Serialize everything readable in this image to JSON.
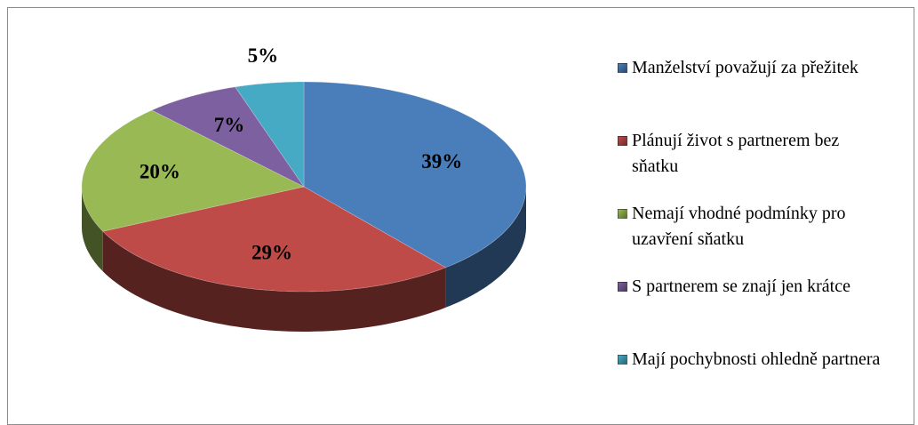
{
  "chart_data": {
    "type": "pie",
    "categories": [
      "Manželství považují za přežitek",
      "Plánují život s partnerem bez sňatku",
      "Nemají vhodné podmínky pro uzavření sňatku",
      "S partnerem se znají jen krátce",
      "Mají pochybnosti ohledně partnera"
    ],
    "values": [
      39,
      29,
      20,
      7,
      5
    ],
    "value_labels": [
      "39%",
      "29%",
      "20%",
      "7%",
      "5%"
    ],
    "colors": [
      "#4a7ebb",
      "#be4b48",
      "#98b954",
      "#7d60a0",
      "#46aac5"
    ],
    "legend": "right"
  }
}
